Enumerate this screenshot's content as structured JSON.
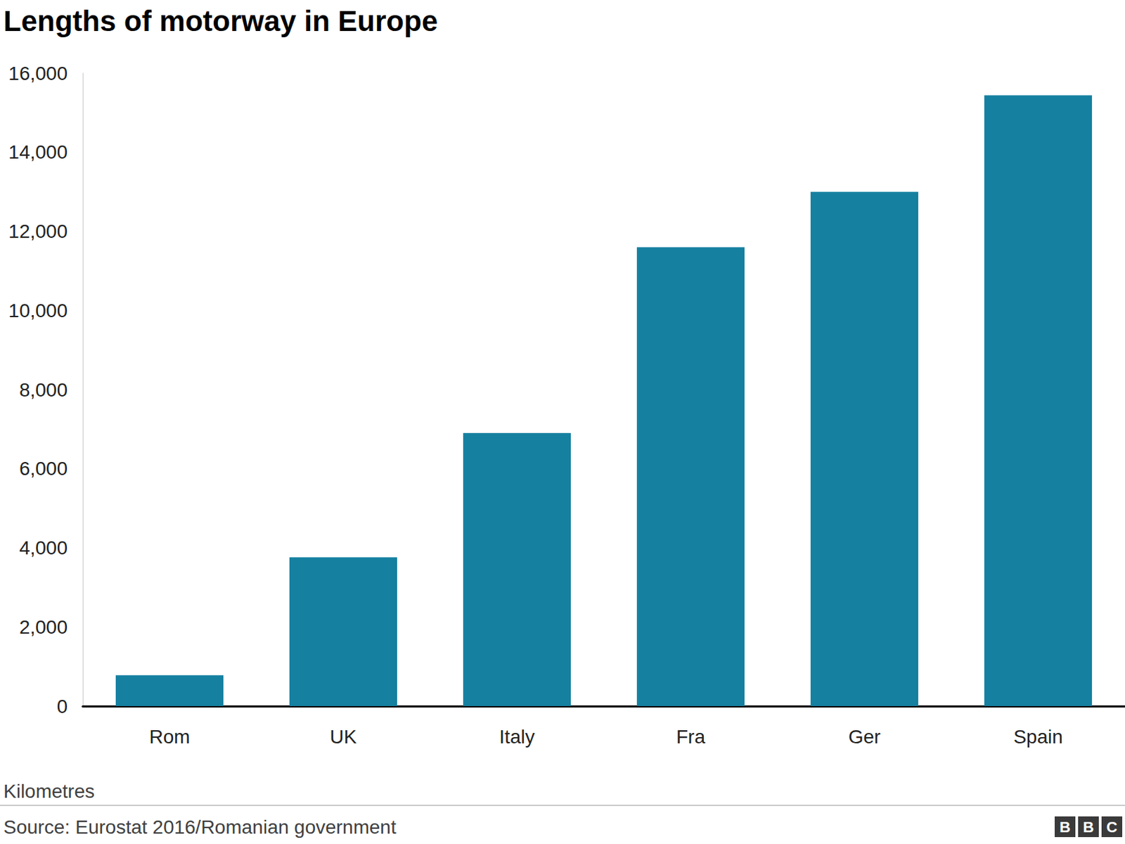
{
  "chart_data": {
    "type": "bar",
    "title": "Lengths of motorway in Europe",
    "categories": [
      "Rom",
      "UK",
      "Italy",
      "Fra",
      "Ger",
      "Spain"
    ],
    "values": [
      780,
      3760,
      6900,
      11600,
      13000,
      15440
    ],
    "color": "#1580a0",
    "y_label": "Kilometres",
    "source": "Source: Eurostat 2016/Romanian government",
    "logo": "BBC",
    "ylim": [
      0,
      16000
    ],
    "yticks": [
      0,
      {
        "value": 2000,
        "label": "2,000"
      },
      {
        "value": 4000,
        "label": "4,000"
      },
      {
        "value": 6000,
        "label": "6,000"
      },
      {
        "value": 8000,
        "label": "8,000"
      },
      {
        "value": 10000,
        "label": "10,000"
      },
      {
        "value": 12000,
        "label": "12,000"
      },
      {
        "value": 14000,
        "label": "14,000"
      },
      {
        "value": 16000,
        "label": "16,000"
      }
    ],
    "grid": false
  }
}
